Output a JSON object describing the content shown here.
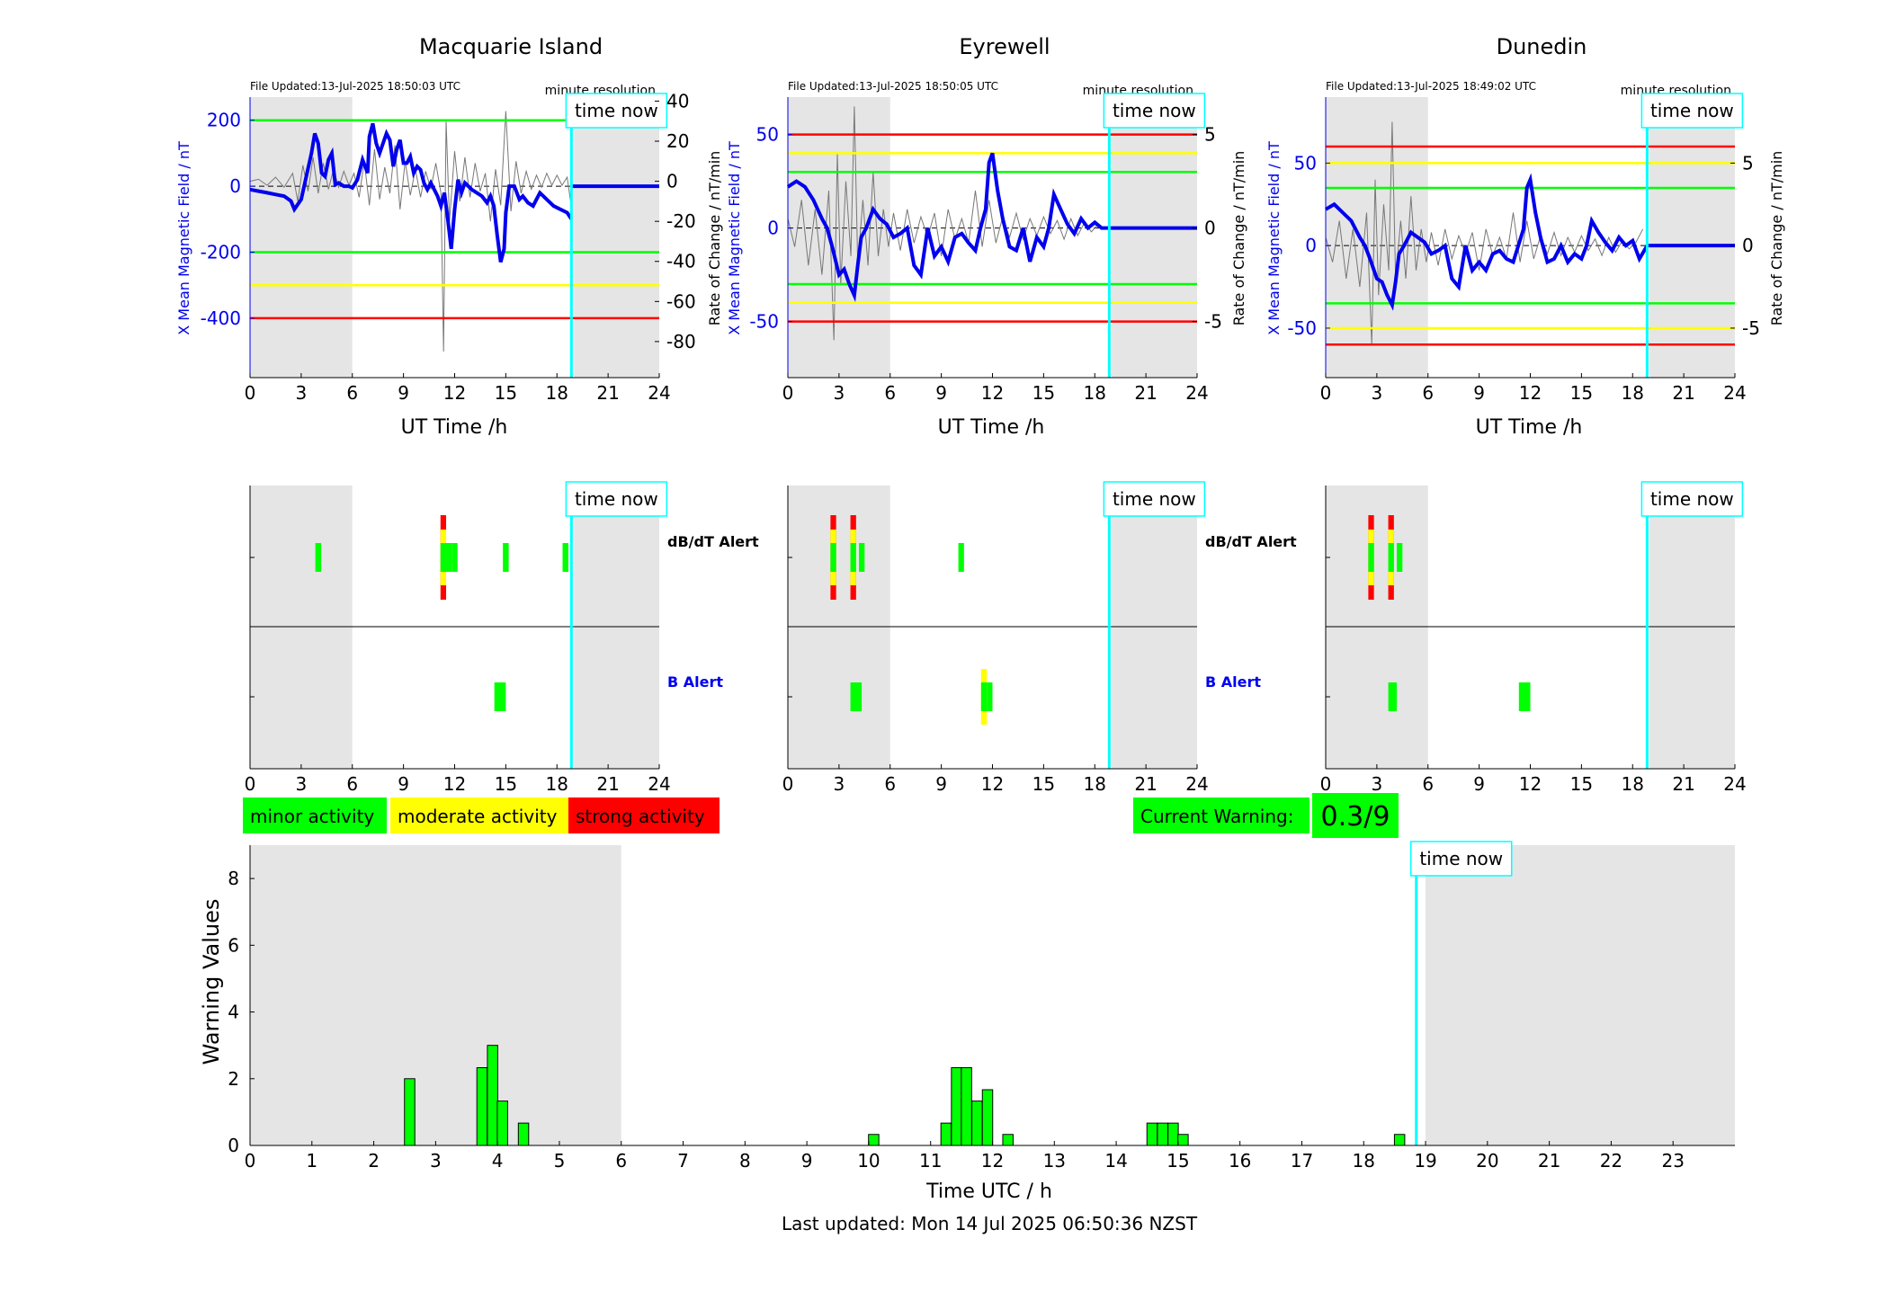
{
  "stations": [
    {
      "name": "Macquarie Island",
      "file_updated": "File Updated:13-Jul-2025 18:50:03 UTC",
      "resolution": "minute resolution"
    },
    {
      "name": "Eyrewell",
      "file_updated": "File Updated:13-Jul-2025 18:50:05 UTC",
      "resolution": "minute resolution"
    },
    {
      "name": "Dunedin",
      "file_updated": "File Updated:13-Jul-2025 18:49:02 UTC",
      "resolution": "minute resolution"
    }
  ],
  "labels": {
    "ylabel_left": "X Mean Magnetic Field / nT",
    "ylabel_right": "Rate of Change / nT/min",
    "xlabel_top": "UT Time /h",
    "time_now": "time now",
    "dbdt_alert": "dB/dT Alert",
    "b_alert": "B Alert",
    "legend_minor": "minor activity",
    "legend_moderate": "moderate activity",
    "legend_strong": "strong activity",
    "current_warning_label": "Current Warning:",
    "current_warning_value": "0.3/9",
    "warning_ylabel": "Warning Values",
    "warning_xlabel": "Time UTC / h",
    "last_updated": "Last updated: Mon 14 Jul 2025 06:50:36 NZST"
  },
  "colors": {
    "minor": "#00ff00",
    "moderate": "#ffff00",
    "strong": "#ff0000",
    "field": "#0000ee",
    "now": "#00ffff",
    "shade": "#e5e5e5",
    "rate": "#777777"
  },
  "time_now_h": 18.85,
  "chart_data": [
    {
      "type": "line",
      "station": "Macquarie Island",
      "xlim": [
        0,
        24
      ],
      "xticks": [
        0,
        3,
        6,
        9,
        12,
        15,
        18,
        21,
        24
      ],
      "ylim": [
        -580,
        270
      ],
      "yticks_left": [
        200,
        0,
        -200,
        -400
      ],
      "ylim_right": [
        -98,
        42
      ],
      "yticks_right": [
        40,
        20,
        0,
        -20,
        -40,
        -60,
        -80
      ],
      "thresholds": [
        {
          "level": "minor",
          "y": [
            200,
            -200
          ]
        },
        {
          "level": "moderate",
          "y": [
            -300
          ]
        },
        {
          "level": "strong",
          "y": [
            -400
          ]
        }
      ],
      "shaded": [
        [
          0,
          6
        ],
        [
          19,
          24
        ]
      ],
      "field_x": [
        0,
        0.5,
        1,
        1.5,
        2,
        2.4,
        2.6,
        3,
        3.3,
        3.6,
        3.8,
        4,
        4.2,
        4.4,
        4.6,
        4.8,
        5,
        5.2,
        5.5,
        5.8,
        6,
        6.3,
        6.6,
        6.9,
        7,
        7.2,
        7.4,
        7.6,
        7.8,
        8,
        8.2,
        8.4,
        8.6,
        8.8,
        9,
        9.2,
        9.4,
        9.6,
        9.8,
        10,
        10.2,
        10.4,
        10.6,
        10.8,
        11,
        11.2,
        11.4,
        11.6,
        11.8,
        12,
        12.2,
        12.4,
        12.6,
        12.8,
        13,
        13.3,
        13.6,
        13.9,
        14.1,
        14.3,
        14.5,
        14.7,
        14.9,
        15,
        15.2,
        15.5,
        15.8,
        16,
        16.3,
        16.6,
        17,
        17.4,
        17.8,
        18.2,
        18.6,
        18.85
      ],
      "field_y": [
        -10,
        -15,
        -20,
        -25,
        -30,
        -45,
        -70,
        -40,
        30,
        100,
        160,
        130,
        40,
        30,
        80,
        100,
        5,
        10,
        0,
        0,
        -5,
        20,
        80,
        40,
        150,
        190,
        130,
        100,
        130,
        160,
        140,
        60,
        110,
        140,
        70,
        70,
        90,
        40,
        60,
        50,
        10,
        -10,
        10,
        -10,
        -30,
        -60,
        -20,
        -100,
        -190,
        -70,
        20,
        -20,
        10,
        0,
        -10,
        -20,
        -30,
        -50,
        -30,
        -60,
        -150,
        -230,
        -190,
        -80,
        0,
        0,
        -40,
        -30,
        -50,
        -60,
        -20,
        -40,
        -60,
        -70,
        -80,
        -100
      ],
      "rate_x": [
        0,
        0.5,
        1,
        1.5,
        2,
        2.5,
        2.8,
        3.1,
        3.4,
        3.7,
        4,
        4.3,
        4.6,
        4.9,
        5.2,
        5.5,
        5.8,
        6.1,
        6.4,
        6.7,
        7,
        7.3,
        7.6,
        7.9,
        8.2,
        8.5,
        8.8,
        9.1,
        9.4,
        9.7,
        10,
        10.3,
        10.6,
        10.9,
        11.2,
        11.35,
        11.5,
        11.7,
        12,
        12.3,
        12.6,
        12.9,
        13.2,
        13.5,
        13.8,
        14.1,
        14.4,
        14.7,
        15,
        15.3,
        15.6,
        15.9,
        16.2,
        16.5,
        16.8,
        17.1,
        17.4,
        17.7,
        18,
        18.3,
        18.6,
        18.8
      ],
      "rate_y": [
        0,
        1,
        -2,
        2,
        -3,
        4,
        -10,
        8,
        -5,
        12,
        -6,
        9,
        -4,
        6,
        -3,
        5,
        -2,
        4,
        -8,
        10,
        -12,
        16,
        -9,
        7,
        -6,
        18,
        -14,
        10,
        -7,
        6,
        -8,
        5,
        -4,
        9,
        -6,
        -85,
        30,
        -20,
        15,
        -10,
        12,
        -8,
        9,
        -5,
        4,
        -20,
        6,
        -12,
        35,
        -15,
        10,
        -6,
        5,
        -4,
        3,
        -3,
        4,
        -2,
        3,
        -2,
        2,
        -10
      ],
      "series_names": []
    },
    {
      "type": "line",
      "station": "Eyrewell",
      "xlim": [
        0,
        24
      ],
      "xticks": [
        0,
        3,
        6,
        9,
        12,
        15,
        18,
        21,
        24
      ],
      "ylim": [
        -80,
        70
      ],
      "yticks_left": [
        50,
        0,
        -50
      ],
      "ylim_right": [
        -8,
        7
      ],
      "yticks_right": [
        5,
        0,
        -5
      ],
      "thresholds": [
        {
          "level": "minor",
          "y": [
            30,
            -30
          ]
        },
        {
          "level": "moderate",
          "y": [
            40,
            -40
          ]
        },
        {
          "level": "strong",
          "y": [
            50,
            -50
          ]
        }
      ],
      "shaded": [
        [
          0,
          6
        ],
        [
          19,
          24
        ]
      ],
      "field_x": [
        0,
        0.5,
        1,
        1.5,
        2,
        2.3,
        2.6,
        3,
        3.3,
        3.6,
        3.9,
        4.1,
        4.3,
        4.6,
        5,
        5.4,
        5.8,
        6.2,
        6.6,
        7,
        7.4,
        7.8,
        8.2,
        8.6,
        9,
        9.4,
        9.8,
        10.2,
        10.6,
        11,
        11.3,
        11.6,
        11.8,
        12,
        12.3,
        12.6,
        13,
        13.4,
        13.8,
        14.2,
        14.6,
        15,
        15.3,
        15.6,
        16,
        16.4,
        16.8,
        17.2,
        17.6,
        18,
        18.4,
        18.85
      ],
      "field_y": [
        22,
        25,
        22,
        15,
        5,
        0,
        -10,
        -25,
        -22,
        -30,
        -36,
        -20,
        -5,
        0,
        10,
        5,
        2,
        -5,
        -3,
        0,
        -20,
        -25,
        0,
        -15,
        -10,
        -18,
        -5,
        -3,
        -8,
        -12,
        0,
        10,
        35,
        40,
        20,
        5,
        -10,
        -12,
        0,
        -18,
        -5,
        -10,
        0,
        18,
        10,
        2,
        -3,
        5,
        0,
        3,
        0,
        0
      ],
      "rate_x": [
        0,
        0.4,
        0.8,
        1.2,
        1.6,
        2,
        2.4,
        2.7,
        2.9,
        3.1,
        3.4,
        3.7,
        3.9,
        4.1,
        4.4,
        4.7,
        5,
        5.3,
        5.6,
        5.9,
        6.2,
        6.6,
        7,
        7.4,
        7.8,
        8.2,
        8.6,
        9,
        9.4,
        9.8,
        10.2,
        10.6,
        11,
        11.4,
        11.8,
        12.2,
        12.6,
        13,
        13.4,
        13.8,
        14.2,
        14.6,
        15,
        15.4,
        15.8,
        16.2,
        16.6,
        17,
        17.4,
        17.8,
        18.2
      ],
      "rate_y": [
        0.5,
        -1,
        1.5,
        -2,
        1,
        -2.5,
        2,
        -6,
        4,
        -3,
        2.5,
        -1.5,
        6.5,
        -2,
        1.5,
        -2,
        3,
        -1.5,
        1,
        -1,
        0.8,
        -1.2,
        1,
        -0.8,
        0.6,
        -0.5,
        0.8,
        -1.5,
        1,
        -0.6,
        0.5,
        -0.8,
        2,
        -1,
        1.5,
        -0.8,
        0.6,
        -0.5,
        0.8,
        -0.6,
        0.5,
        -0.4,
        0.6,
        -0.3,
        0.4,
        -0.6,
        0.5,
        -0.4,
        0.3,
        -0.2,
        0.2
      ],
      "series_names": []
    },
    {
      "type": "line",
      "station": "Dunedin",
      "xlim": [
        0,
        24
      ],
      "xticks": [
        0,
        3,
        6,
        9,
        12,
        15,
        18,
        21,
        24
      ],
      "ylim": [
        -80,
        90
      ],
      "yticks_left": [
        50,
        0,
        -50
      ],
      "ylim_right": [
        -8,
        9
      ],
      "yticks_right": [
        5,
        0,
        -5
      ],
      "thresholds": [
        {
          "level": "minor",
          "y": [
            35,
            -35
          ]
        },
        {
          "level": "moderate",
          "y": [
            50,
            -50
          ]
        },
        {
          "level": "strong",
          "y": [
            60,
            -60
          ]
        }
      ],
      "shaded": [
        [
          0,
          6
        ],
        [
          19,
          24
        ]
      ],
      "field_x": [
        0,
        0.5,
        1,
        1.5,
        2,
        2.3,
        2.6,
        3,
        3.3,
        3.6,
        3.9,
        4.1,
        4.3,
        4.6,
        5,
        5.4,
        5.8,
        6.2,
        6.6,
        7,
        7.4,
        7.8,
        8.2,
        8.6,
        9,
        9.4,
        9.8,
        10.2,
        10.6,
        11,
        11.3,
        11.6,
        11.8,
        12,
        12.3,
        12.6,
        13,
        13.4,
        13.8,
        14.2,
        14.6,
        15,
        15.3,
        15.6,
        16,
        16.4,
        16.8,
        17.2,
        17.6,
        18,
        18.4,
        18.85
      ],
      "field_y": [
        22,
        25,
        20,
        15,
        5,
        0,
        -8,
        -20,
        -22,
        -30,
        -36,
        -22,
        -5,
        0,
        8,
        5,
        2,
        -5,
        -3,
        0,
        -20,
        -25,
        0,
        -15,
        -10,
        -15,
        -5,
        -3,
        -8,
        -10,
        0,
        10,
        35,
        40,
        20,
        5,
        -10,
        -8,
        0,
        -10,
        -5,
        -8,
        0,
        15,
        8,
        2,
        -3,
        5,
        0,
        3,
        -8,
        0
      ],
      "rate_x": [
        0,
        0.4,
        0.8,
        1.2,
        1.6,
        2,
        2.4,
        2.7,
        2.9,
        3.1,
        3.4,
        3.7,
        3.9,
        4.1,
        4.4,
        4.7,
        5,
        5.3,
        5.6,
        5.9,
        6.2,
        6.6,
        7,
        7.4,
        7.8,
        8.2,
        8.6,
        9,
        9.4,
        9.8,
        10.2,
        10.6,
        11,
        11.4,
        11.8,
        12.2,
        12.6,
        13,
        13.4,
        13.8,
        14.2,
        14.6,
        15,
        15.4,
        15.8,
        16.2,
        16.6,
        17,
        17.4,
        17.8,
        18.2,
        18.6
      ],
      "rate_y": [
        0.5,
        -1,
        1.5,
        -2,
        1,
        -2.5,
        2,
        -6,
        4,
        -3,
        2.5,
        -1.5,
        7.5,
        -2,
        1.5,
        -2,
        3,
        -1.5,
        1,
        -1,
        0.8,
        -1.2,
        1,
        -0.8,
        0.6,
        -0.5,
        0.8,
        -1.5,
        1,
        -0.6,
        0.5,
        -0.8,
        2,
        -1,
        1.5,
        -0.8,
        0.6,
        -0.5,
        0.8,
        -0.6,
        0.5,
        -0.4,
        0.6,
        -0.3,
        0.4,
        -0.6,
        0.5,
        -0.4,
        0.3,
        -0.2,
        0.2,
        1
      ],
      "series_names": []
    },
    {
      "type": "heatmap",
      "station": "Macquarie Island",
      "rows": [
        "dB/dT Alert",
        "B Alert"
      ],
      "xlim": [
        0,
        24
      ],
      "xticks": [
        0,
        3,
        6,
        9,
        12,
        15,
        18,
        21,
        24
      ],
      "shaded": [
        [
          0,
          6
        ],
        [
          19,
          24
        ]
      ],
      "dbdt": [
        {
          "t0": 3.83,
          "t1": 4.17,
          "level": "minor"
        },
        {
          "t0": 11.17,
          "t1": 11.5,
          "level": "strong"
        },
        {
          "t0": 11.5,
          "t1": 11.83,
          "level": "minor"
        },
        {
          "t0": 11.83,
          "t1": 12.17,
          "level": "minor"
        },
        {
          "t0": 14.83,
          "t1": 15.17,
          "level": "minor"
        },
        {
          "t0": 18.33,
          "t1": 18.67,
          "level": "minor"
        }
      ],
      "b": [
        {
          "t0": 14.33,
          "t1": 15,
          "level": "minor"
        }
      ]
    },
    {
      "type": "heatmap",
      "station": "Eyrewell",
      "rows": [
        "dB/dT Alert",
        "B Alert"
      ],
      "xlim": [
        0,
        24
      ],
      "xticks": [
        0,
        3,
        6,
        9,
        12,
        15,
        18,
        21,
        24
      ],
      "shaded": [
        [
          0,
          6
        ],
        [
          19,
          24
        ]
      ],
      "dbdt": [
        {
          "t0": 2.5,
          "t1": 2.83,
          "level": "strong"
        },
        {
          "t0": 3.67,
          "t1": 4,
          "level": "strong"
        },
        {
          "t0": 4.17,
          "t1": 4.5,
          "level": "minor"
        },
        {
          "t0": 10,
          "t1": 10.33,
          "level": "minor"
        }
      ],
      "b": [
        {
          "t0": 3.67,
          "t1": 4.33,
          "level": "minor"
        },
        {
          "t0": 11.33,
          "t1": 11.67,
          "level": "moderate"
        },
        {
          "t0": 11.67,
          "t1": 12,
          "level": "minor"
        }
      ]
    },
    {
      "type": "heatmap",
      "station": "Dunedin",
      "rows": [
        "dB/dT Alert",
        "B Alert"
      ],
      "xlim": [
        0,
        24
      ],
      "xticks": [
        0,
        3,
        6,
        9,
        12,
        15,
        18,
        21,
        24
      ],
      "shaded": [
        [
          0,
          6
        ],
        [
          19,
          24
        ]
      ],
      "dbdt": [
        {
          "t0": 2.5,
          "t1": 2.83,
          "level": "strong"
        },
        {
          "t0": 3.67,
          "t1": 4,
          "level": "strong"
        },
        {
          "t0": 4.17,
          "t1": 4.5,
          "level": "minor"
        }
      ],
      "b": [
        {
          "t0": 3.67,
          "t1": 4.17,
          "level": "minor"
        },
        {
          "t0": 11.33,
          "t1": 12,
          "level": "minor"
        }
      ]
    },
    {
      "type": "bar",
      "station": "combined",
      "xlim": [
        0,
        24
      ],
      "xticks": [
        0,
        1,
        2,
        3,
        4,
        5,
        6,
        7,
        8,
        9,
        10,
        11,
        12,
        13,
        14,
        15,
        16,
        17,
        18,
        19,
        20,
        21,
        22,
        23
      ],
      "ylim": [
        0,
        9
      ],
      "yticks": [
        0,
        2,
        4,
        6,
        8
      ],
      "bar_width_h": 0.1667,
      "shaded": [
        [
          0,
          6
        ],
        [
          19,
          24
        ]
      ],
      "x": [
        2.58,
        3.75,
        3.92,
        4.08,
        4.42,
        10.08,
        11.25,
        11.42,
        11.58,
        11.75,
        11.92,
        12.25,
        14.58,
        14.75,
        14.92,
        15.08,
        18.58
      ],
      "values": [
        2,
        2.33,
        3,
        1.33,
        0.67,
        0.33,
        0.67,
        2.33,
        2.33,
        1.33,
        1.67,
        0.33,
        0.67,
        0.67,
        0.67,
        0.33,
        0.33
      ]
    }
  ]
}
